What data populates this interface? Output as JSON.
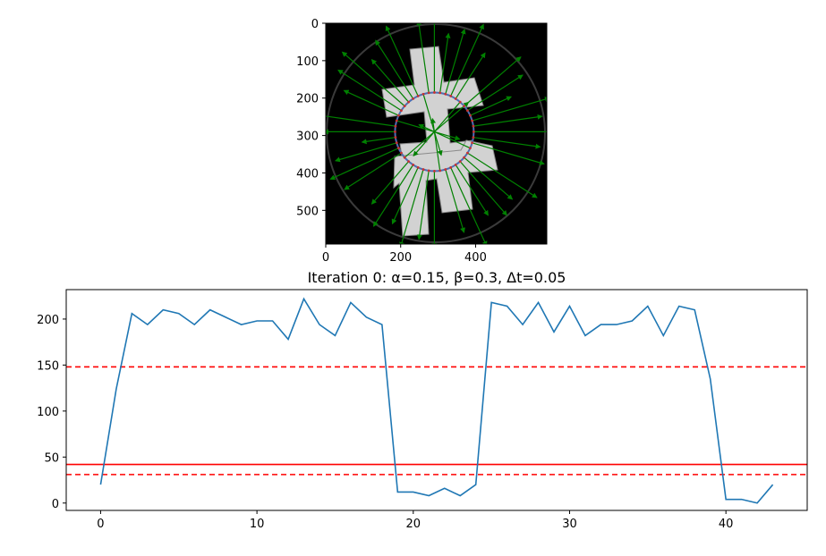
{
  "chart_data": [
    {
      "type": "image",
      "xticks": [
        0,
        200,
        400
      ],
      "yticks": [
        0,
        100,
        200,
        300,
        400,
        500
      ],
      "xlim": [
        0,
        590
      ],
      "ylim": [
        590,
        0
      ],
      "contour": {
        "center": [
          290,
          290
        ],
        "radius": 105,
        "points": 44
      },
      "colors": {
        "contour": "#4a6fb5",
        "contour_points": "#c83232",
        "arrows": "#008000"
      }
    },
    {
      "type": "line",
      "title": "Iteration 0: α=0.15, β=0.3, Δt=0.05",
      "xlabel": "",
      "ylabel": "",
      "xlim": [
        -2.2,
        45.2
      ],
      "ylim": [
        -8,
        232
      ],
      "xticks": [
        0,
        10,
        20,
        30,
        40
      ],
      "yticks": [
        0,
        50,
        100,
        150,
        200
      ],
      "grid": false,
      "x": [
        0,
        1,
        2,
        3,
        4,
        5,
        6,
        7,
        8,
        9,
        10,
        11,
        12,
        13,
        14,
        15,
        16,
        17,
        18,
        19,
        20,
        21,
        22,
        23,
        24,
        25,
        26,
        27,
        28,
        29,
        30,
        31,
        32,
        33,
        34,
        35,
        36,
        37,
        38,
        39,
        40,
        41,
        42,
        43
      ],
      "series": [
        {
          "color": "#1f77b4",
          "values": [
            20,
            124,
            206,
            194,
            210,
            206,
            194,
            210,
            202,
            194,
            198,
            198,
            178,
            222,
            194,
            182,
            218,
            202,
            194,
            12,
            12,
            8,
            16,
            8,
            20,
            218,
            214,
            194,
            218,
            186,
            214,
            182,
            194,
            194,
            198,
            214,
            182,
            214,
            210,
            135,
            4,
            4,
            0,
            20
          ]
        }
      ],
      "hlines": [
        {
          "y": 148,
          "style": "dashed",
          "color": "#ff0000"
        },
        {
          "y": 42,
          "style": "solid",
          "color": "#ff0000"
        },
        {
          "y": 31,
          "style": "dashed",
          "color": "#ff0000"
        }
      ]
    }
  ]
}
